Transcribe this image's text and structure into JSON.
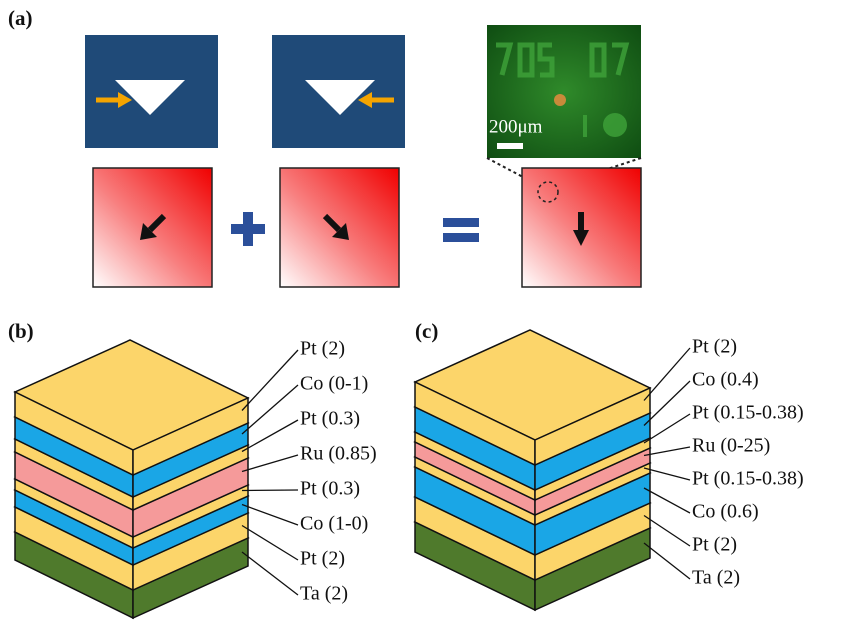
{
  "panels": {
    "a": {
      "label": "(a)",
      "scale_bar": "200μm"
    },
    "b": {
      "label": "(b)",
      "layers": [
        "Pt (2)",
        "Co (0-1)",
        "Pt (0.3)",
        "Ru (0.85)",
        "Pt (0.3)",
        "Co (1-0)",
        "Pt (2)",
        "Ta (2)"
      ]
    },
    "c": {
      "label": "(c)",
      "layers": [
        "Pt (2)",
        "Co (0.4)",
        "Pt (0.15-0.38)",
        "Ru (0-25)",
        "Pt (0.15-0.38)",
        "Co (0.6)",
        "Pt (2)",
        "Ta (2)"
      ]
    }
  }
}
